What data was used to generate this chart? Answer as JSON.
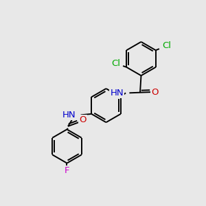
{
  "bg_color": "#e8e8e8",
  "bond_color": "#000000",
  "bond_width": 1.4,
  "atom_colors": {
    "Cl": "#00aa00",
    "N": "#0000cc",
    "O": "#cc0000",
    "F": "#cc00cc",
    "C": "#000000",
    "H": "#555555"
  },
  "font_size": 9.5
}
